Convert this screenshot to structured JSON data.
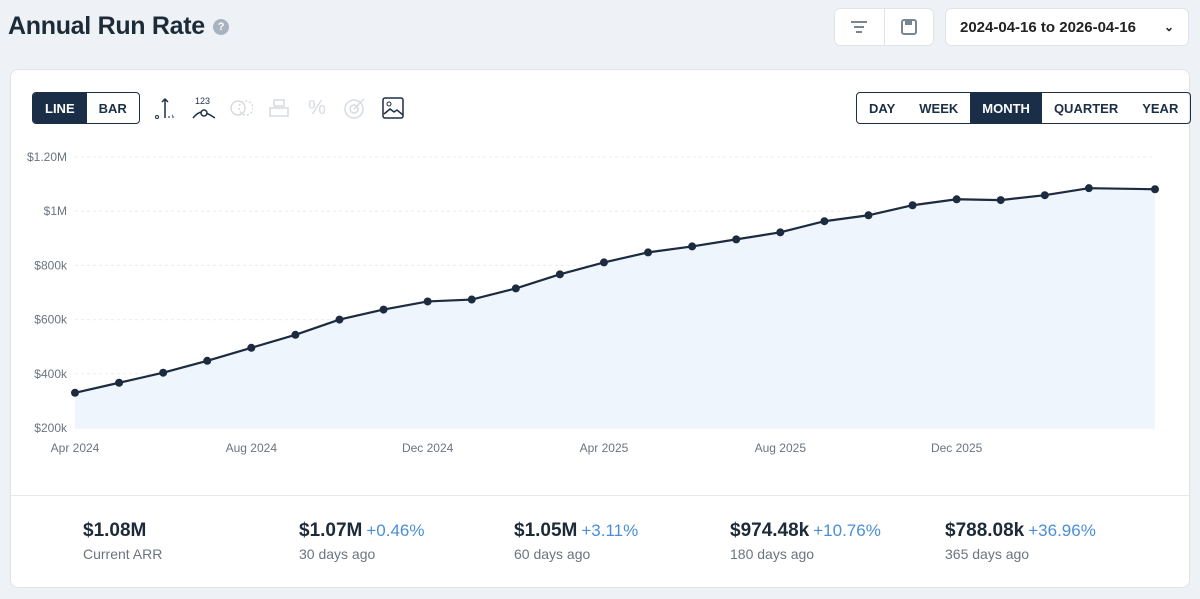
{
  "header": {
    "title": "Annual Run Rate",
    "help_icon": "question-circle-icon",
    "date_range": "2024-04-16 to 2026-04-16"
  },
  "toolbar": {
    "chart_types": [
      "LINE",
      "BAR"
    ],
    "active_chart_type": "LINE",
    "intervals": [
      "DAY",
      "WEEK",
      "MONTH",
      "QUARTER",
      "YEAR"
    ],
    "active_interval": "MONTH",
    "tools": [
      "axis-icon",
      "data-labels-icon",
      "compare-icon",
      "stack-icon",
      "percent-icon",
      "goal-icon",
      "image-export-icon"
    ]
  },
  "colors": {
    "accent": "#1a2e48",
    "line": "#1c2b3d",
    "fill": "#eef5fd",
    "change": "#4a8fd6"
  },
  "chart_data": {
    "type": "area",
    "ylim": [
      200000,
      1200000
    ],
    "y_ticks": [
      {
        "v": 200000,
        "label": "$200k"
      },
      {
        "v": 400000,
        "label": "$400k"
      },
      {
        "v": 600000,
        "label": "$600k"
      },
      {
        "v": 800000,
        "label": "$800k"
      },
      {
        "v": 1000000,
        "label": "$1M"
      },
      {
        "v": 1200000,
        "label": "$1.20M"
      }
    ],
    "x_ticks": [
      {
        "d": "2024-04",
        "label": "Apr 2024"
      },
      {
        "d": "2024-08",
        "label": "Aug 2024"
      },
      {
        "d": "2024-12",
        "label": "Dec 2024"
      },
      {
        "d": "2025-04",
        "label": "Apr 2025"
      },
      {
        "d": "2025-08",
        "label": "Aug 2025"
      },
      {
        "d": "2025-12",
        "label": "Dec 2025"
      }
    ],
    "grid": true,
    "x": [
      "2024-04",
      "2024-05",
      "2024-06",
      "2024-07",
      "2024-08",
      "2024-09",
      "2024-10",
      "2024-11",
      "2024-12",
      "2025-01",
      "2025-02",
      "2025-03",
      "2025-04",
      "2025-05",
      "2025-06",
      "2025-07",
      "2025-08",
      "2025-09",
      "2025-10",
      "2025-11",
      "2025-12",
      "2026-01",
      "2026-02",
      "2026-03",
      "2026-04-16"
    ],
    "values": [
      330000,
      367000,
      404000,
      448000,
      496000,
      544000,
      600000,
      637000,
      667000,
      674000,
      715000,
      767000,
      811000,
      848000,
      870000,
      896000,
      922000,
      963000,
      985000,
      1022000,
      1044000,
      1041000,
      1059000,
      1085000,
      1081000
    ]
  },
  "stats": [
    {
      "value": "$1.08M",
      "change": "",
      "label": "Current ARR"
    },
    {
      "value": "$1.07M",
      "change": "+0.46%",
      "label": "30 days ago"
    },
    {
      "value": "$1.05M",
      "change": "+3.11%",
      "label": "60 days ago"
    },
    {
      "value": "$974.48k",
      "change": "+10.76%",
      "label": "180 days ago"
    },
    {
      "value": "$788.08k",
      "change": "+36.96%",
      "label": "365 days ago"
    }
  ]
}
